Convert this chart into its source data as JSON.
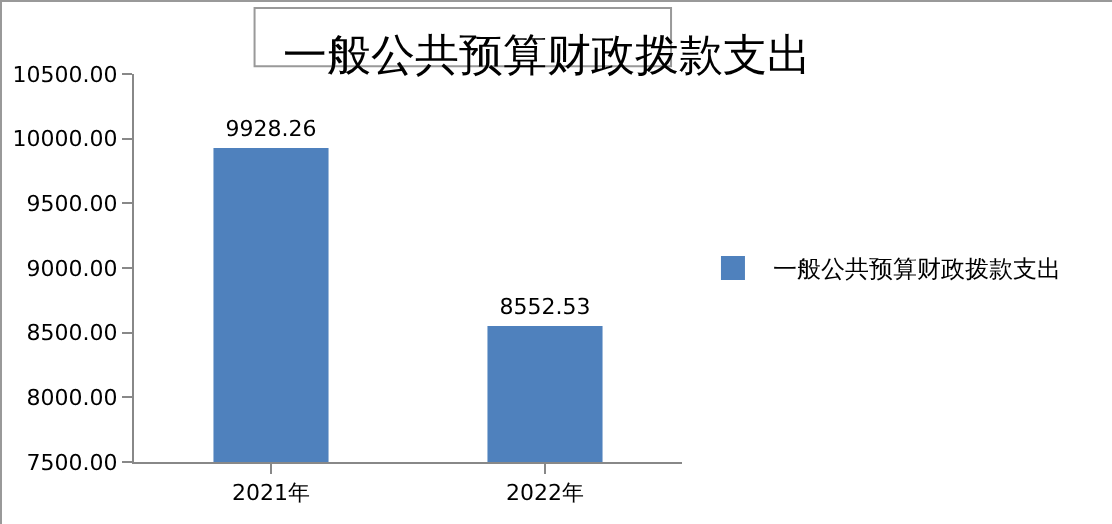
{
  "chart_data": {
    "type": "bar",
    "title": "一般公共预算财政拨款支出",
    "categories": [
      "2021年",
      "2022年"
    ],
    "series": [
      {
        "name": "一般公共预算财政拨款支出",
        "color": "#4f81bd",
        "values": [
          9928.26,
          8552.53
        ]
      }
    ],
    "ylim": [
      7500,
      10500
    ],
    "yticks": [
      {
        "value": 7500,
        "label": "7500.00"
      },
      {
        "value": 8000,
        "label": "8000.00"
      },
      {
        "value": 8500,
        "label": "8500.00"
      },
      {
        "value": 9000,
        "label": "9000.00"
      },
      {
        "value": 9500,
        "label": "9500.00"
      },
      {
        "value": 10000,
        "label": "10000.00"
      },
      {
        "value": 10500,
        "label": "10500.00"
      }
    ],
    "data_labels": true,
    "grid": false,
    "legend": "right"
  }
}
